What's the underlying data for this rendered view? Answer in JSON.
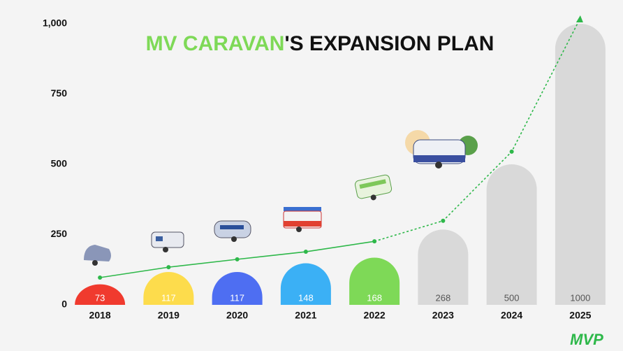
{
  "chart_data": {
    "type": "bar",
    "title_highlight": "MV CARAVAN",
    "title_rest": "'S EXPANSION PLAN",
    "title_highlight_color": "#7ed957",
    "title_color": "#111111",
    "categories": [
      "2018",
      "2019",
      "2020",
      "2021",
      "2022",
      "2023",
      "2024",
      "2025"
    ],
    "values": [
      73,
      117,
      117,
      148,
      168,
      268,
      500,
      1000
    ],
    "colors": [
      "#f03a2e",
      "#fddc4c",
      "#4e6ef2",
      "#3bb0f5",
      "#7ed957",
      "#d9d9d9",
      "#d9d9d9",
      "#d9d9d9"
    ],
    "value_label_colors": [
      "#ffffff",
      "#ffffff",
      "#ffffff",
      "#ffffff",
      "#ffffff",
      "#555555",
      "#555555",
      "#555555"
    ],
    "ylim": [
      0,
      1000
    ],
    "yticks": [
      0,
      250,
      500,
      750,
      {
        "value": 1000,
        "label": "1,000"
      }
    ],
    "trend": {
      "color": "#2eb84a",
      "values": [
        97,
        134,
        162,
        189,
        226,
        299,
        545,
        1020
      ],
      "dash_start": 4
    },
    "logo": "MVP",
    "logo_color": "#2eb84a"
  }
}
